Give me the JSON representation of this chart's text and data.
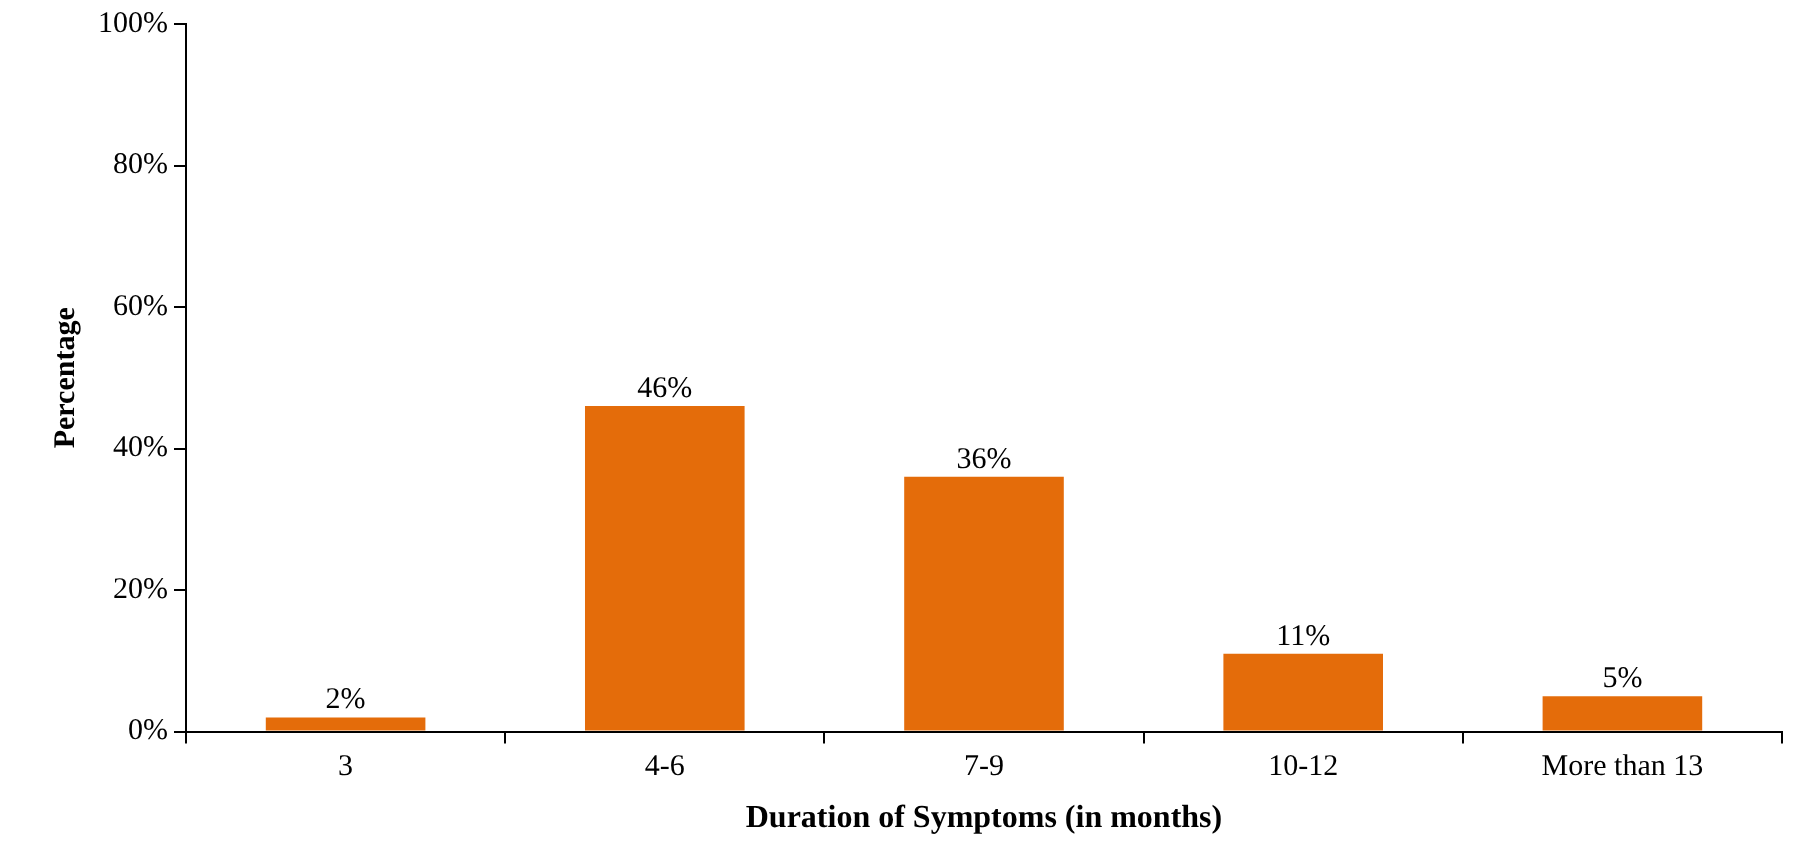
{
  "chart_data": {
    "type": "bar",
    "xlabel": "Duration of Symptoms (in months)",
    "ylabel": "Percentage",
    "categories": [
      "3",
      "4-6",
      "7-9",
      "10-12",
      "More than 13"
    ],
    "values": [
      2,
      46,
      36,
      11,
      5
    ],
    "value_labels": [
      "2%",
      "46%",
      "36%",
      "11%",
      "5%"
    ],
    "color": "#e46c0a",
    "ylim": [
      0,
      100
    ],
    "yticks": [
      {
        "value": 0,
        "label": "0%"
      },
      {
        "value": 20,
        "label": "20%"
      },
      {
        "value": 40,
        "label": "40%"
      },
      {
        "value": 60,
        "label": "60%"
      },
      {
        "value": 80,
        "label": "80%"
      },
      {
        "value": 100,
        "label": "100%"
      }
    ],
    "grid": false,
    "legend": false
  }
}
